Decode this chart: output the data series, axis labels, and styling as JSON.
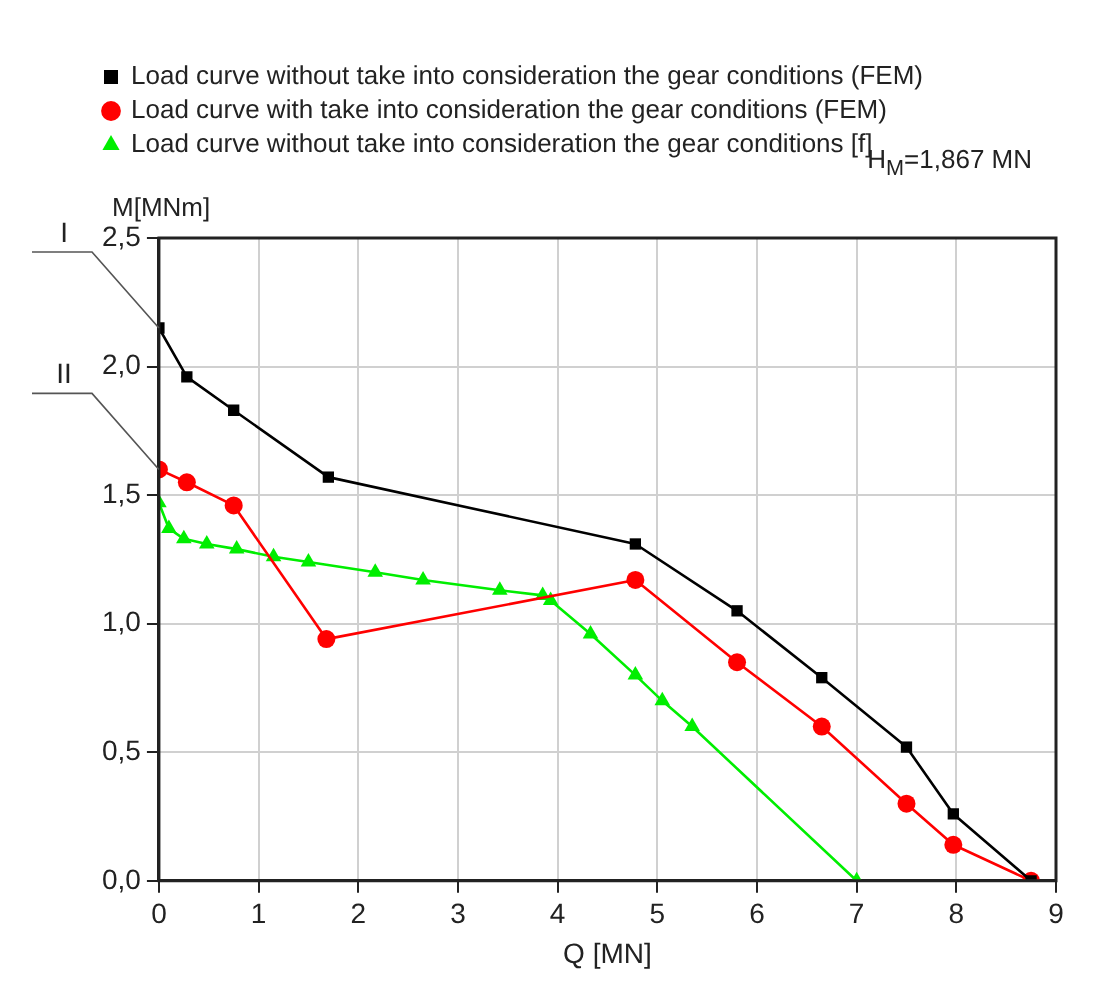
{
  "chart_data": {
    "type": "line",
    "xlabel": "Q [MN]",
    "ylabel": "M[MNm]",
    "xlim": [
      0,
      9
    ],
    "xticks": [
      0,
      1,
      2,
      3,
      4,
      5,
      6,
      7,
      8,
      9
    ],
    "ylim": [
      0,
      2.5
    ],
    "yticks": [
      {
        "value": 0,
        "label": "0,0"
      },
      {
        "value": 0.5,
        "label": "0,5"
      },
      {
        "value": 1,
        "label": "1,0"
      },
      {
        "value": 1.5,
        "label": "1,5"
      },
      {
        "value": 2,
        "label": "2,0"
      },
      {
        "value": 2.5,
        "label": "2,5"
      }
    ],
    "grid": true,
    "legend": "top",
    "line_style": "solid",
    "series": [
      {
        "name": "Load curve without take into consideration the gear conditions (FEM)",
        "color": "#000000",
        "marker": "square",
        "x": [
          0,
          0.28,
          0.75,
          1.7,
          4.78,
          5.8,
          6.65,
          7.5,
          7.97,
          8.75
        ],
        "values": [
          2.15,
          1.96,
          1.83,
          1.57,
          1.31,
          1.05,
          0.79,
          0.52,
          0.26,
          0
        ]
      },
      {
        "name": "Load curve with take into consideration the gear conditions (FEM)",
        "color": "#ff0000",
        "marker": "circle",
        "x": [
          0,
          0.28,
          0.75,
          1.68,
          4.78,
          5.8,
          6.65,
          7.5,
          7.97,
          8.75
        ],
        "values": [
          1.6,
          1.55,
          1.46,
          0.94,
          1.17,
          0.85,
          0.6,
          0.3,
          0.14,
          0
        ]
      },
      {
        "name": "Load curve without take into consideration the gear conditions [f]",
        "color": "#00ee00",
        "marker": "triangle",
        "x": [
          0,
          0.1,
          0.25,
          0.48,
          0.78,
          1.15,
          1.5,
          2.17,
          2.65,
          3.42,
          3.85,
          3.93,
          4.33,
          4.78,
          5.05,
          5.35,
          7.0
        ],
        "values": [
          1.47,
          1.37,
          1.33,
          1.31,
          1.29,
          1.26,
          1.24,
          1.2,
          1.17,
          1.13,
          1.11,
          1.09,
          0.96,
          0.8,
          0.7,
          0.6,
          0
        ]
      }
    ],
    "annotations": [
      {
        "text": "I",
        "x": 0,
        "y": 2.15
      },
      {
        "text": "II",
        "x": 0,
        "y": 1.6
      },
      "H$_{M}$=1,867 MN"
    ]
  }
}
